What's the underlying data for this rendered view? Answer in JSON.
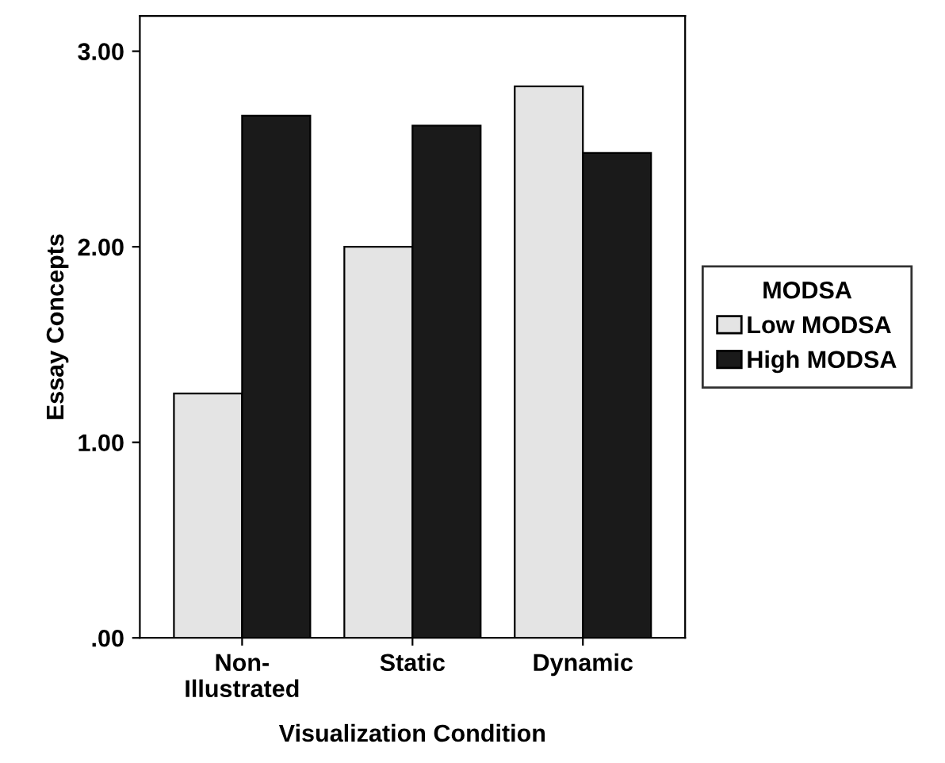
{
  "chart_data": {
    "type": "bar",
    "xlabel": "Visualization Condition",
    "ylabel": "Essay Concepts",
    "legend_title": "MODSA",
    "legend": "right",
    "categories": [
      "Non-\nIllustrated",
      "Static",
      "Dynamic"
    ],
    "series": [
      {
        "name": "Low MODSA",
        "color": "#e4e4e4",
        "values": [
          1.25,
          2.0,
          2.82
        ]
      },
      {
        "name": "High MODSA",
        "color": "#1a1a1a",
        "values": [
          2.67,
          2.62,
          2.48
        ]
      }
    ],
    "ylim": [
      0,
      3.18
    ],
    "yticks": [
      {
        "value": 0,
        "label": ".00"
      },
      {
        "value": 1,
        "label": "1.00"
      },
      {
        "value": 2,
        "label": "2.00"
      },
      {
        "value": 3,
        "label": "3.00"
      }
    ],
    "grid": false
  }
}
